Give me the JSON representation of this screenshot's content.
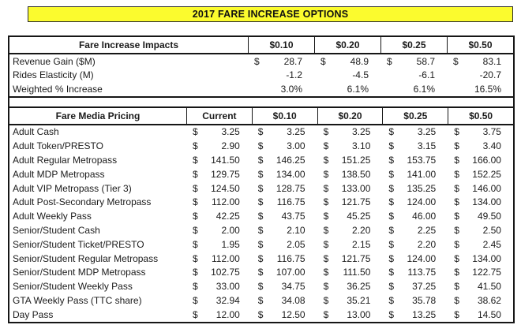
{
  "title": "2017 FARE INCREASE OPTIONS",
  "currency_symbol": "$",
  "colors": {
    "title_background": "#FFFF2E",
    "border": "#000000",
    "text": "#1B1B1B",
    "table_background": "#FFFFFF"
  },
  "impacts_table": {
    "header_label": "Fare Increase Impacts",
    "columns": [
      "$0.10",
      "$0.20",
      "$0.25",
      "$0.50"
    ],
    "rows": [
      {
        "label": "Revenue Gain ($M)",
        "currency": true,
        "values": [
          "28.7",
          "48.9",
          "58.7",
          "83.1"
        ]
      },
      {
        "label": "Rides Elasticity (M)",
        "currency": false,
        "values": [
          "-1.2",
          "-4.5",
          "-6.1",
          "-20.7"
        ]
      },
      {
        "label": "Weighted % Increase",
        "currency": false,
        "values": [
          "3.0%",
          "6.1%",
          "6.1%",
          "16.5%"
        ]
      }
    ]
  },
  "pricing_table": {
    "header_label": "Fare Media Pricing",
    "columns": [
      "Current",
      "$0.10",
      "$0.20",
      "$0.25",
      "$0.50"
    ],
    "rows": [
      {
        "label": "Adult Cash",
        "currency": true,
        "values": [
          "3.25",
          "3.25",
          "3.25",
          "3.25",
          "3.75"
        ]
      },
      {
        "label": "Adult Token/PRESTO",
        "currency": true,
        "values": [
          "2.90",
          "3.00",
          "3.10",
          "3.15",
          "3.40"
        ]
      },
      {
        "label": "Adult Regular Metropass",
        "currency": true,
        "values": [
          "141.50",
          "146.25",
          "151.25",
          "153.75",
          "166.00"
        ]
      },
      {
        "label": "Adult MDP Metropass",
        "currency": true,
        "values": [
          "129.75",
          "134.00",
          "138.50",
          "141.00",
          "152.25"
        ]
      },
      {
        "label": "Adult VIP Metropass (Tier 3)",
        "currency": true,
        "values": [
          "124.50",
          "128.75",
          "133.00",
          "135.25",
          "146.00"
        ]
      },
      {
        "label": "Adult Post-Secondary Metropass",
        "currency": true,
        "values": [
          "112.00",
          "116.75",
          "121.75",
          "124.00",
          "134.00"
        ]
      },
      {
        "label": "Adult Weekly Pass",
        "currency": true,
        "values": [
          "42.25",
          "43.75",
          "45.25",
          "46.00",
          "49.50"
        ]
      },
      {
        "label": "Senior/Student Cash",
        "currency": true,
        "values": [
          "2.00",
          "2.10",
          "2.20",
          "2.25",
          "2.50"
        ]
      },
      {
        "label": "Senior/Student Ticket/PRESTO",
        "currency": true,
        "values": [
          "1.95",
          "2.05",
          "2.15",
          "2.20",
          "2.45"
        ]
      },
      {
        "label": "Senior/Student Regular Metropass",
        "currency": true,
        "values": [
          "112.00",
          "116.75",
          "121.75",
          "124.00",
          "134.00"
        ]
      },
      {
        "label": "Senior/Student MDP Metropass",
        "currency": true,
        "values": [
          "102.75",
          "107.00",
          "111.50",
          "113.75",
          "122.75"
        ]
      },
      {
        "label": "Senior/Student Weekly Pass",
        "currency": true,
        "values": [
          "33.00",
          "34.75",
          "36.25",
          "37.25",
          "41.50"
        ]
      },
      {
        "label": "GTA Weekly Pass (TTC share)",
        "currency": true,
        "values": [
          "32.94",
          "34.08",
          "35.21",
          "35.78",
          "38.62"
        ]
      },
      {
        "label": "Day Pass",
        "currency": true,
        "values": [
          "12.00",
          "12.50",
          "13.00",
          "13.25",
          "14.50"
        ]
      }
    ]
  }
}
